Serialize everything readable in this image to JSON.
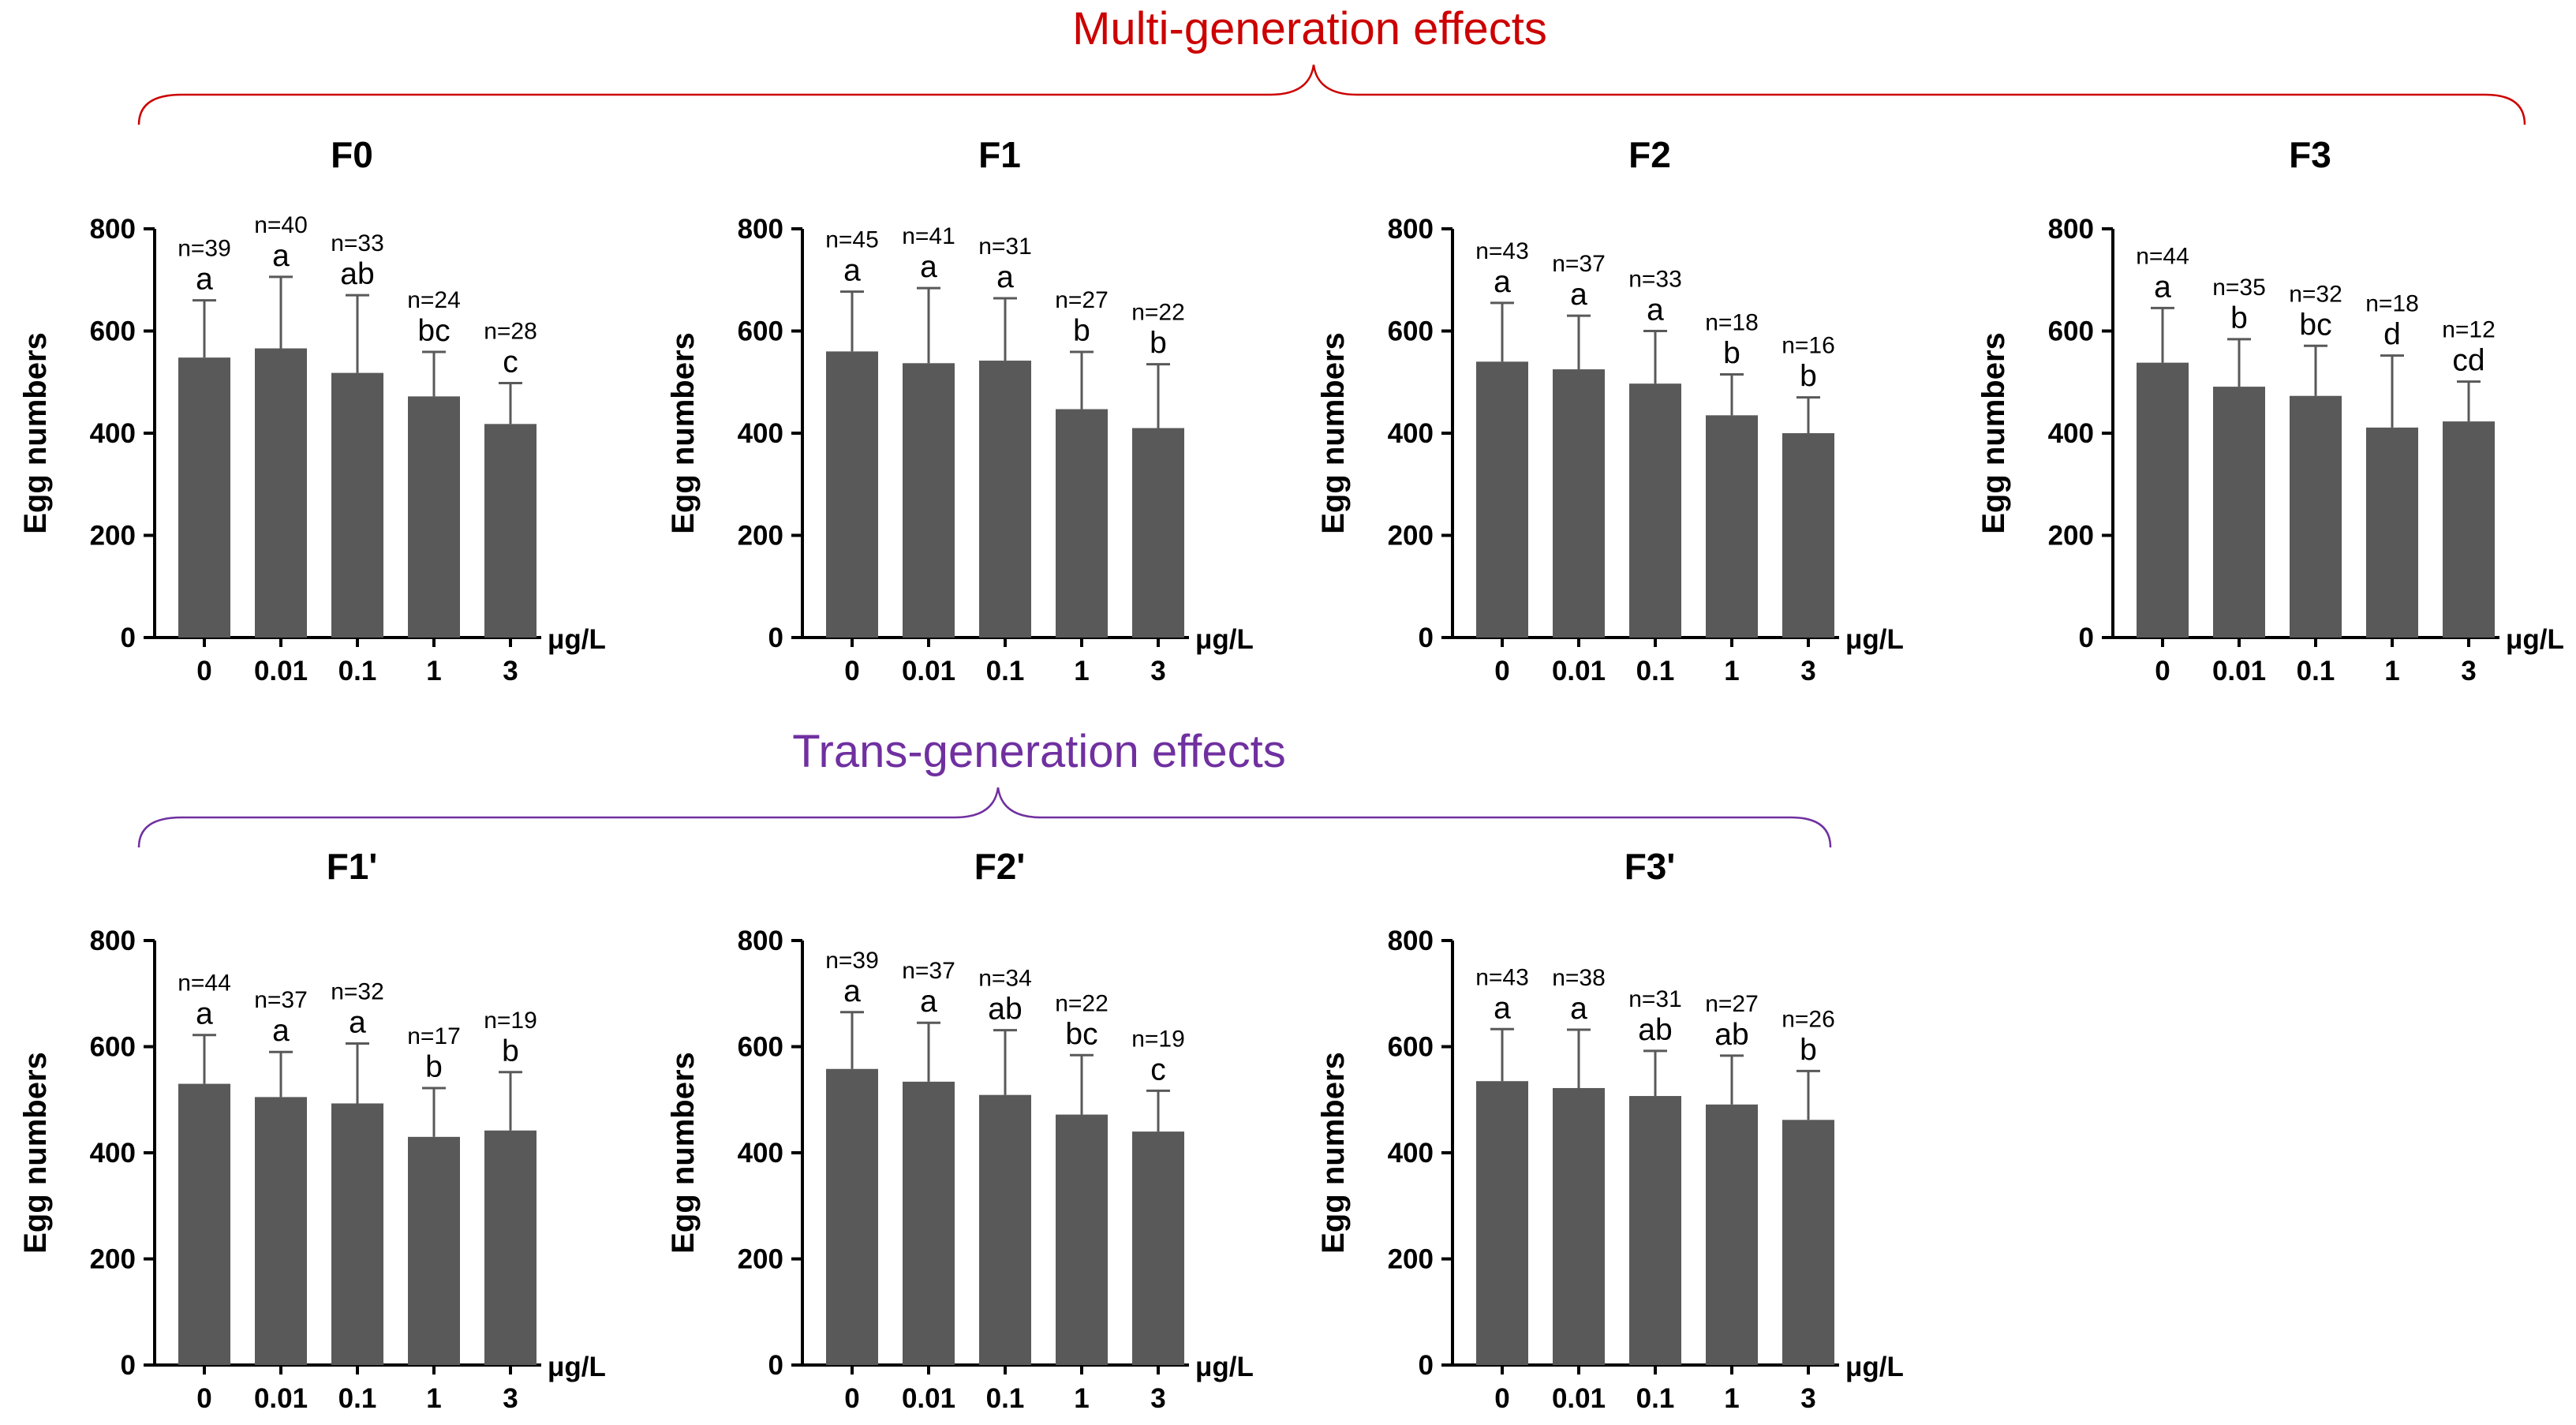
{
  "groups": {
    "multi": {
      "title": "Multi-generation effects",
      "color": "#cc0000"
    },
    "trans": {
      "title": "Trans-generation effects",
      "color": "#7030a0"
    }
  },
  "bar_color": "#595959",
  "chart_data": [
    {
      "type": "bar",
      "title": "F0",
      "categories": [
        "0",
        "0.01",
        "0.1",
        "1",
        "3"
      ],
      "values": [
        548,
        566,
        518,
        472,
        418
      ],
      "errors": [
        112,
        140,
        152,
        87,
        80
      ],
      "n_labels": [
        "n=39",
        "n=40",
        "n=33",
        "n=24",
        "n=28"
      ],
      "sig_labels": [
        "a",
        "a",
        "ab",
        "bc",
        "c"
      ],
      "ylabel": "Egg numbers",
      "xlabel": "μg/L",
      "ylim": [
        0,
        800
      ],
      "yticks": [
        "0",
        "200",
        "400",
        "600",
        "800"
      ]
    },
    {
      "type": "bar",
      "title": "F1",
      "categories": [
        "0",
        "0.01",
        "0.1",
        "1",
        "3"
      ],
      "values": [
        560,
        537,
        542,
        447,
        410
      ],
      "errors": [
        117,
        147,
        122,
        112,
        125
      ],
      "n_labels": [
        "n=45",
        "n=41",
        "n=31",
        "n=27",
        "n=22"
      ],
      "sig_labels": [
        "a",
        "a",
        "a",
        "b",
        "b"
      ],
      "ylabel": "Egg numbers",
      "xlabel": "μg/L",
      "ylim": [
        0,
        800
      ],
      "yticks": [
        "0",
        "200",
        "400",
        "600",
        "800"
      ]
    },
    {
      "type": "bar",
      "title": "F2",
      "categories": [
        "0",
        "0.01",
        "0.1",
        "1",
        "3"
      ],
      "values": [
        540,
        525,
        497,
        435,
        400
      ],
      "errors": [
        115,
        105,
        103,
        80,
        70
      ],
      "n_labels": [
        "n=43",
        "n=37",
        "n=33",
        "n=18",
        "n=16"
      ],
      "sig_labels": [
        "a",
        "a",
        "a",
        "b",
        "b"
      ],
      "ylabel": "Egg numbers",
      "xlabel": "μg/L",
      "ylim": [
        0,
        800
      ],
      "yticks": [
        "0",
        "200",
        "400",
        "600",
        "800"
      ]
    },
    {
      "type": "bar",
      "title": "F3",
      "categories": [
        "0",
        "0.01",
        "0.1",
        "1",
        "3"
      ],
      "values": [
        538,
        491,
        473,
        411,
        423
      ],
      "errors": [
        107,
        93,
        98,
        141,
        78
      ],
      "n_labels": [
        "n=44",
        "n=35",
        "n=32",
        "n=18",
        "n=12"
      ],
      "sig_labels": [
        "a",
        "b",
        "bc",
        "d",
        "cd"
      ],
      "ylabel": "Egg numbers",
      "xlabel": "μg/L",
      "ylim": [
        0,
        800
      ],
      "yticks": [
        "0",
        "200",
        "400",
        "600",
        "800"
      ]
    },
    {
      "type": "bar",
      "title": "F1'",
      "categories": [
        "0",
        "0.01",
        "0.1",
        "1",
        "3"
      ],
      "values": [
        530,
        505,
        493,
        430,
        442
      ],
      "errors": [
        92,
        85,
        113,
        92,
        110
      ],
      "n_labels": [
        "n=44",
        "n=37",
        "n=32",
        "n=17",
        "n=19"
      ],
      "sig_labels": [
        "a",
        "a",
        "a",
        "b",
        "b"
      ],
      "ylabel": "Egg numbers",
      "xlabel": "μg/L",
      "ylim": [
        0,
        800
      ],
      "yticks": [
        "0",
        "200",
        "400",
        "600",
        "800"
      ]
    },
    {
      "type": "bar",
      "title": "F2'",
      "categories": [
        "0",
        "0.01",
        "0.1",
        "1",
        "3"
      ],
      "values": [
        558,
        534,
        509,
        472,
        440
      ],
      "errors": [
        107,
        111,
        122,
        112,
        77
      ],
      "n_labels": [
        "n=39",
        "n=37",
        "n=34",
        "n=22",
        "n=19"
      ],
      "sig_labels": [
        "a",
        "a",
        "ab",
        "bc",
        "c"
      ],
      "ylabel": "Egg numbers",
      "xlabel": "μg/L",
      "ylim": [
        0,
        800
      ],
      "yticks": [
        "0",
        "200",
        "400",
        "600",
        "800"
      ]
    },
    {
      "type": "bar",
      "title": "F3'",
      "categories": [
        "0",
        "0.01",
        "0.1",
        "1",
        "3"
      ],
      "values": [
        535,
        522,
        507,
        491,
        462
      ],
      "errors": [
        98,
        110,
        85,
        92,
        92
      ],
      "n_labels": [
        "n=43",
        "n=38",
        "n=31",
        "n=27",
        "n=26"
      ],
      "sig_labels": [
        "a",
        "a",
        "ab",
        "ab",
        "b"
      ],
      "ylabel": "Egg numbers",
      "xlabel": "μg/L",
      "ylim": [
        0,
        800
      ],
      "yticks": [
        "0",
        "200",
        "400",
        "600",
        "800"
      ]
    }
  ]
}
